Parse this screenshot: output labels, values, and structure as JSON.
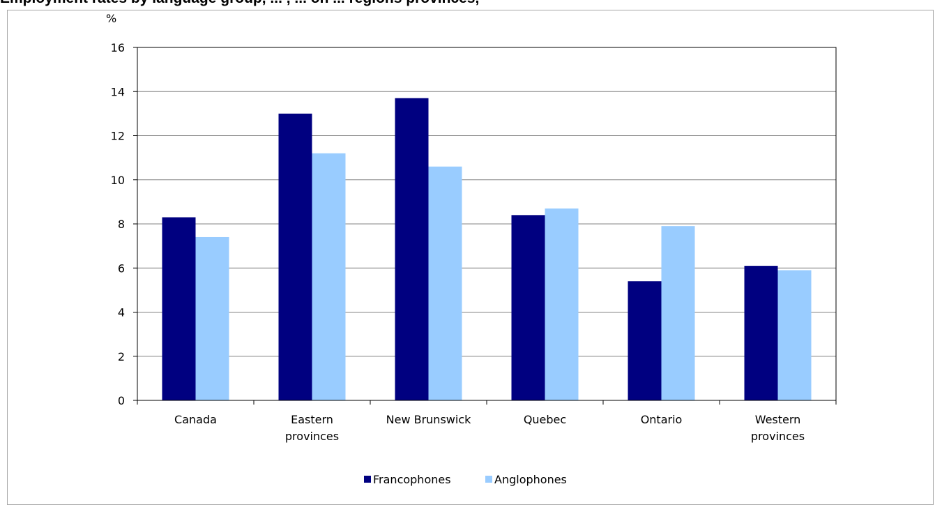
{
  "title": "Employment rates by language group, ... , ... on ... regions provinces,",
  "chart_data": {
    "type": "bar",
    "unit_label": "%",
    "categories": [
      [
        "Canada"
      ],
      [
        "Eastern",
        "provinces"
      ],
      [
        "New Brunswick"
      ],
      [
        "Quebec"
      ],
      [
        "Ontario"
      ],
      [
        "Western",
        "provinces"
      ]
    ],
    "series": [
      {
        "name": "Francophones",
        "color": "#000080",
        "values": [
          8.3,
          13.0,
          13.7,
          8.4,
          5.4,
          6.1
        ]
      },
      {
        "name": "Anglophones",
        "color": "#99ccff",
        "values": [
          7.4,
          11.2,
          10.6,
          8.7,
          7.9,
          5.9
        ]
      }
    ],
    "ylim": [
      0,
      16
    ],
    "yticks": [
      0,
      2,
      4,
      6,
      8,
      10,
      12,
      14,
      16
    ],
    "grid": true,
    "legend_position": "bottom"
  }
}
